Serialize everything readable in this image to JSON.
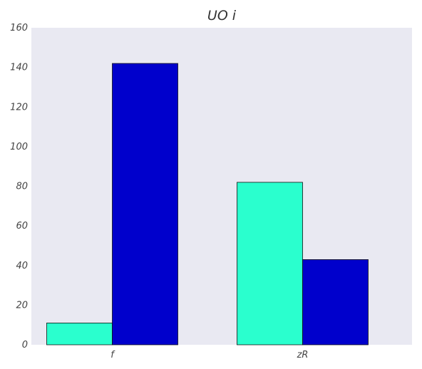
{
  "chart_data": {
    "type": "bar",
    "title": "UO   i",
    "xlabel": "",
    "ylabel": "",
    "categories": [
      "f",
      "zR"
    ],
    "series": [
      {
        "values": [
          11,
          82
        ],
        "color": "#2affce"
      },
      {
        "values": [
          142,
          43
        ],
        "color": "#0000cc"
      }
    ],
    "ylim": [
      0,
      160
    ],
    "yticks": [
      0,
      20,
      40,
      60,
      80,
      100,
      120,
      140,
      160
    ],
    "grid": false,
    "legend": "none",
    "background": "#e9e9f2"
  }
}
